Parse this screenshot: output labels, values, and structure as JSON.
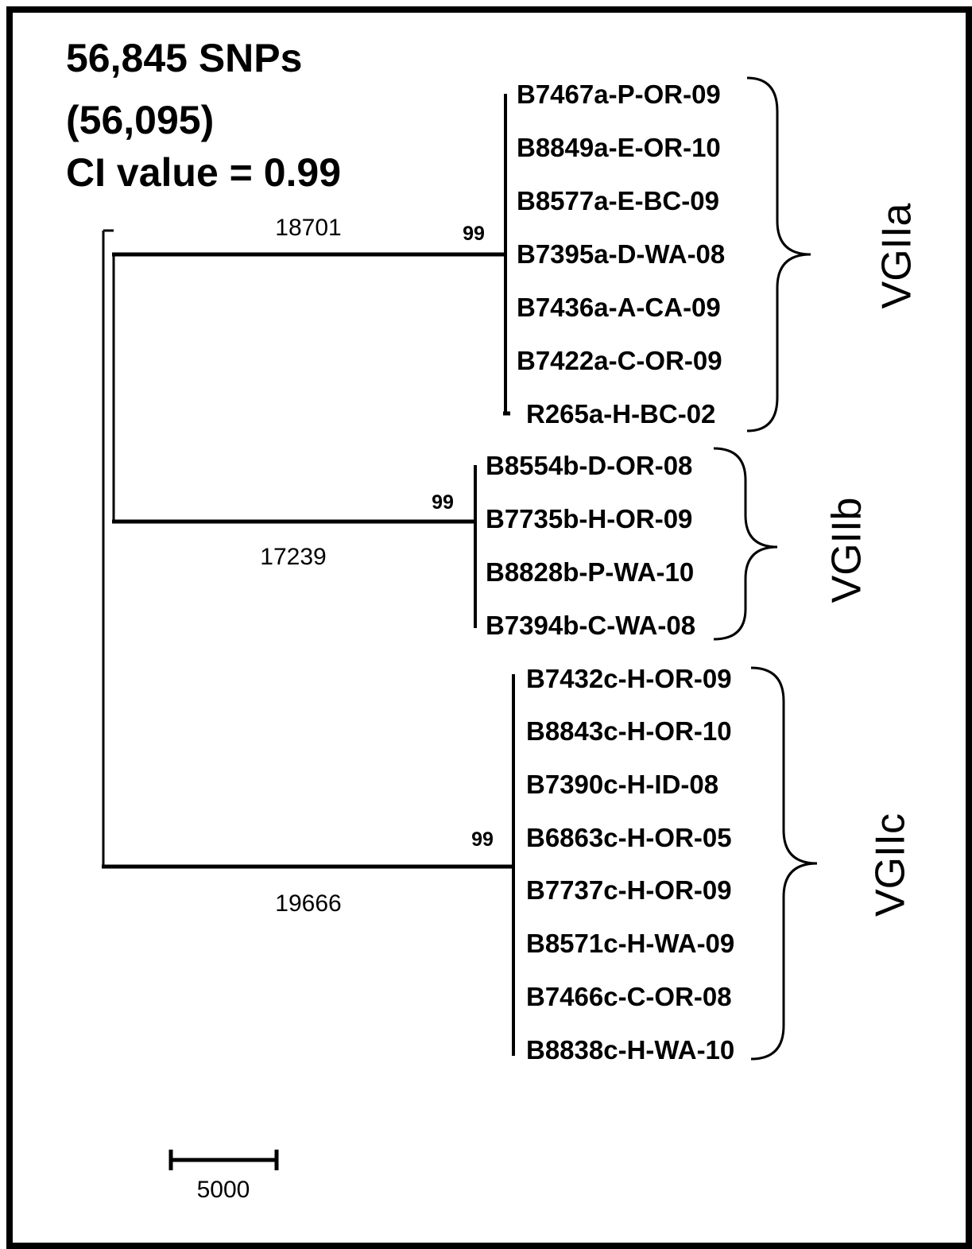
{
  "header": {
    "snps": "56,845 SNPs",
    "parenthetical": "(56,095)",
    "ci": "CI value = 0.99"
  },
  "branches": {
    "vgiia_length": "18701",
    "vgiib_length": "17239",
    "vgiic_length": "19666"
  },
  "bootstrap": {
    "vgiia": "99",
    "vgiib": "99",
    "vgiic": "99"
  },
  "clades": {
    "vgiia": {
      "name": "VGIIa",
      "leaves": [
        "B7467a-P-OR-09",
        "B8849a-E-OR-10",
        "B8577a-E-BC-09",
        "B7395a-D-WA-08",
        "B7436a-A-CA-09",
        "B7422a-C-OR-09",
        "R265a-H-BC-02"
      ]
    },
    "vgiib": {
      "name": "VGIIb",
      "leaves": [
        "B8554b-D-OR-08",
        "B7735b-H-OR-09",
        "B8828b-P-WA-10",
        "B7394b-C-WA-08"
      ]
    },
    "vgiic": {
      "name": "VGIIc",
      "leaves": [
        "B7432c-H-OR-09",
        "B8843c-H-OR-10",
        "B7390c-H-ID-08",
        "B6863c-H-OR-05",
        "B7737c-H-OR-09",
        "B8571c-H-WA-09",
        "B7466c-C-OR-08",
        "B8838c-H-WA-10"
      ]
    }
  },
  "scale_bar": {
    "label": "5000"
  }
}
